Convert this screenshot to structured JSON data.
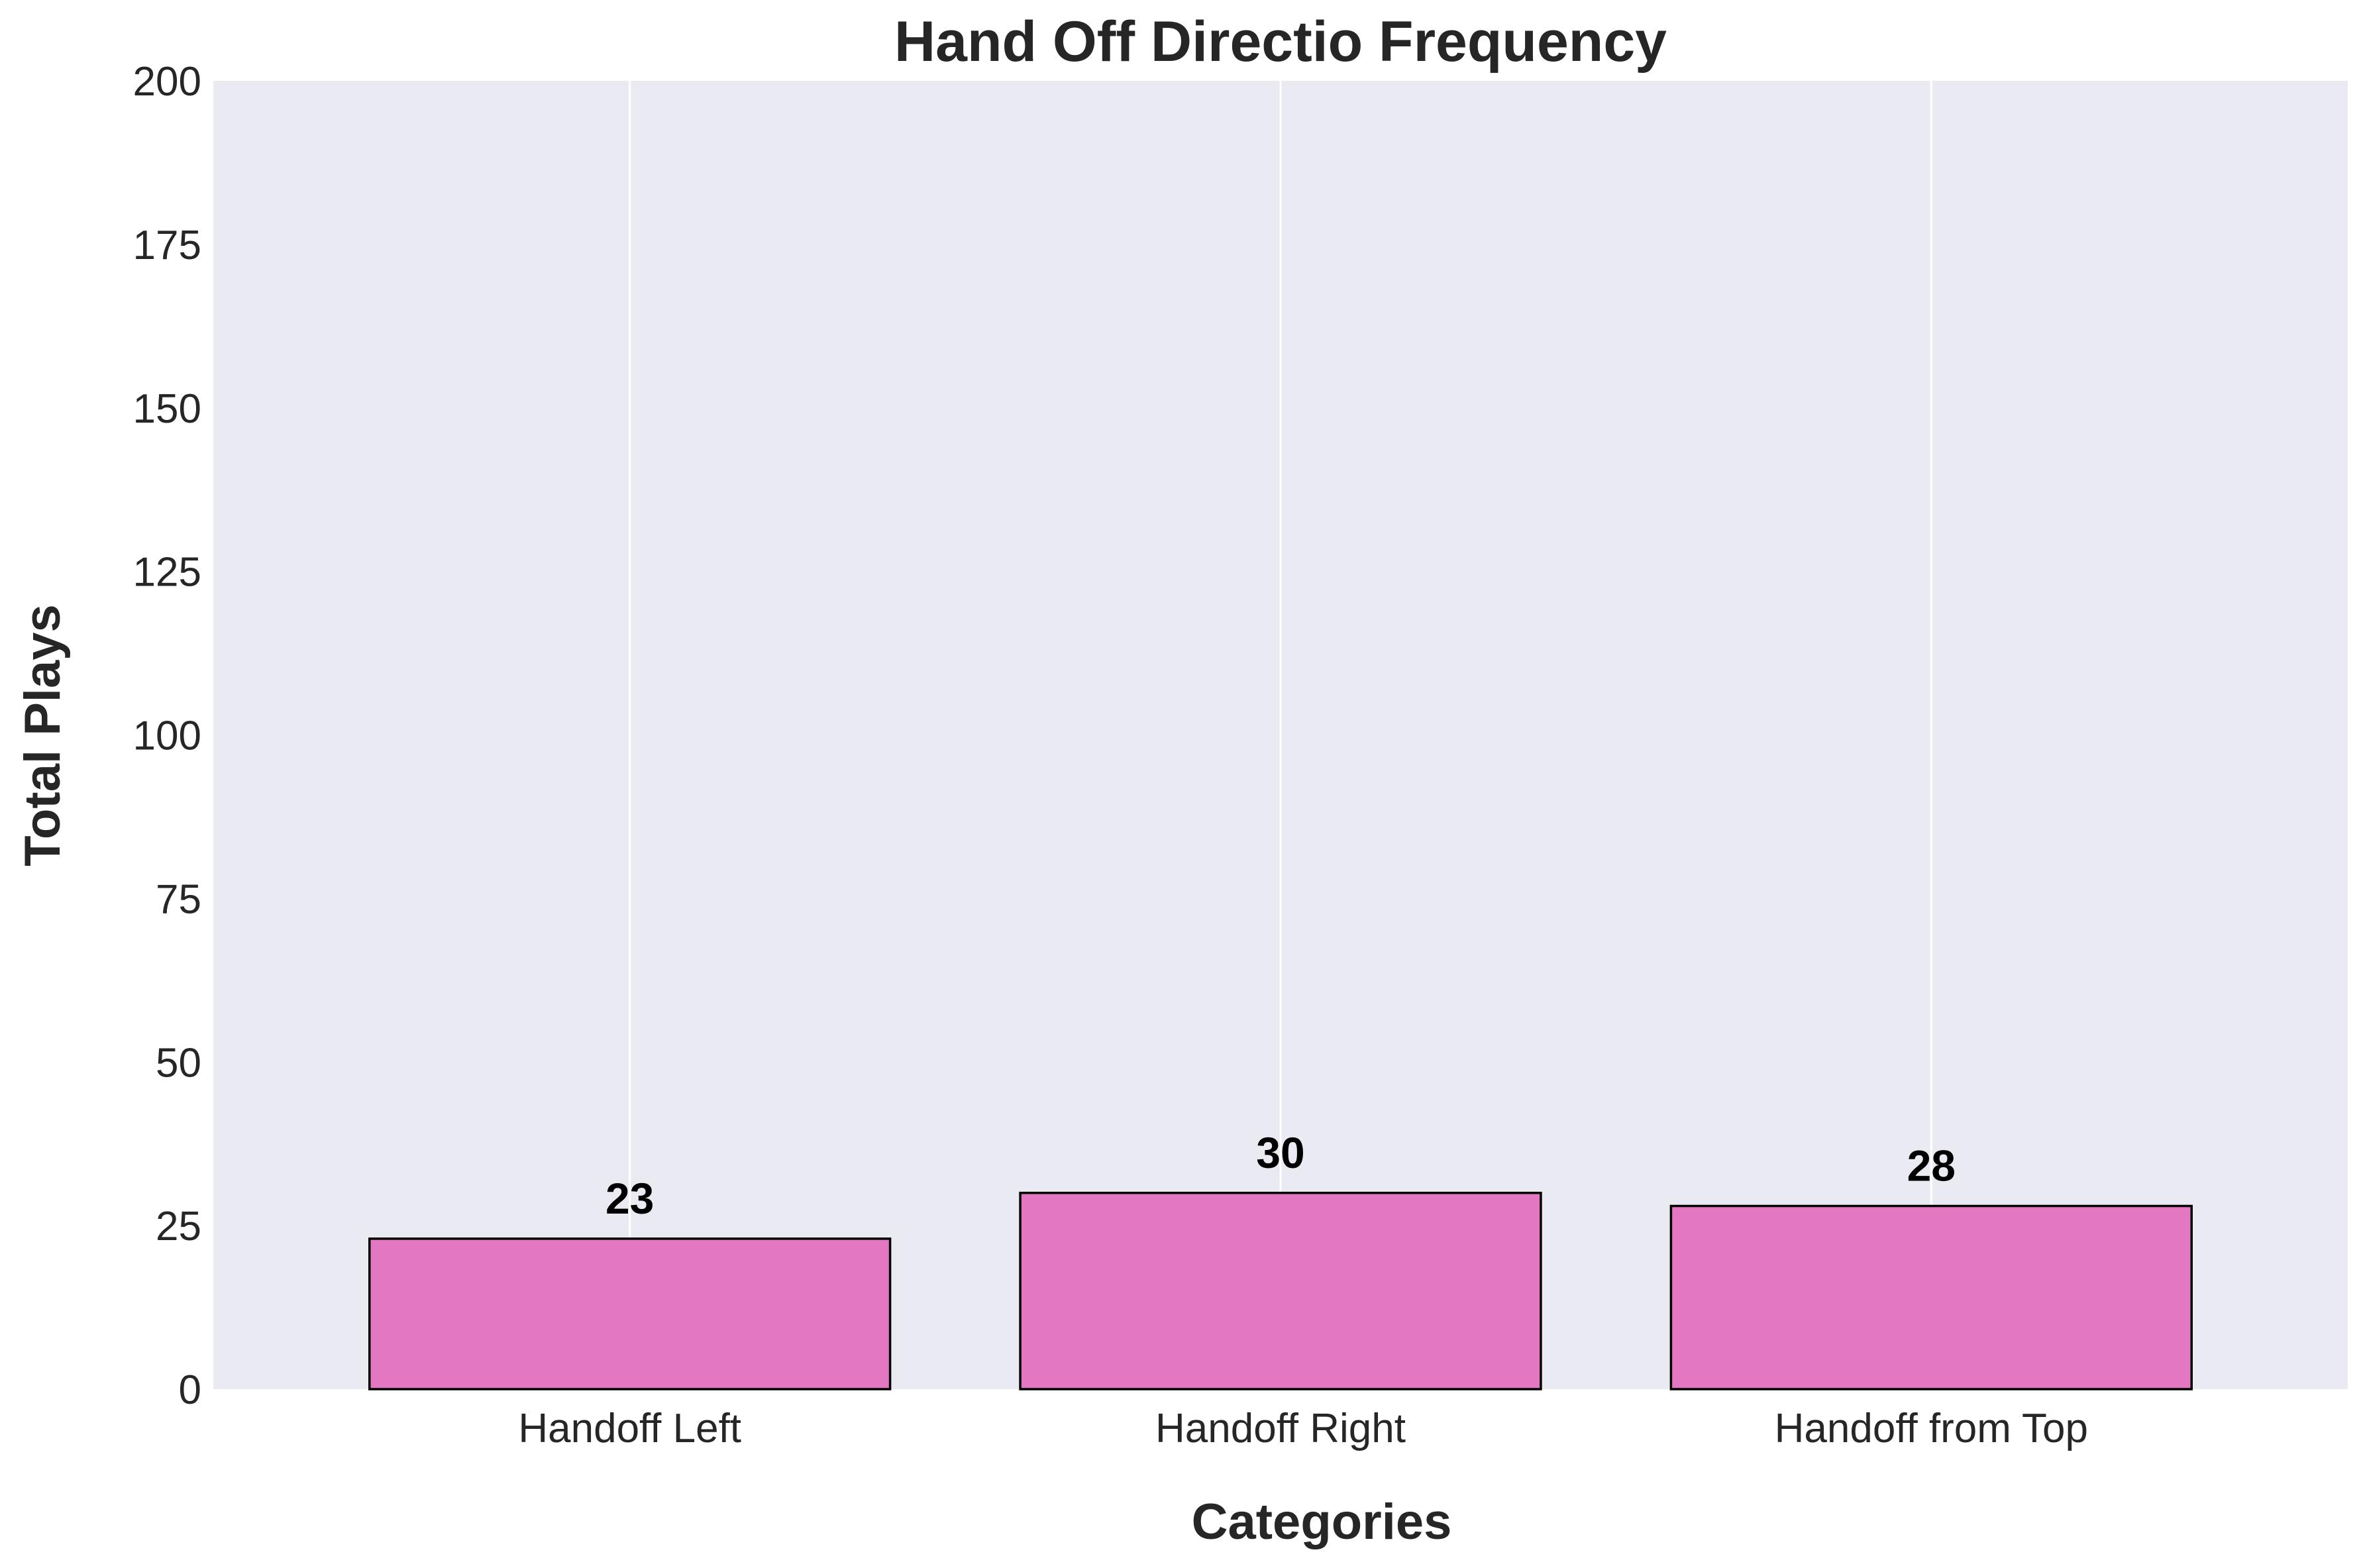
{
  "chart_data": {
    "type": "bar",
    "title": "Hand Off Directio Frequency",
    "xlabel": "Categories",
    "ylabel": "Total Plays",
    "categories": [
      "Handoff Left",
      "Handoff Right",
      "Handoff from Top"
    ],
    "values": [
      23,
      30,
      28
    ],
    "value_labels": [
      "23",
      "30",
      "28"
    ],
    "ylim": [
      0,
      200
    ],
    "yticks": [
      0,
      25,
      50,
      75,
      100,
      125,
      150,
      175,
      200
    ],
    "ytick_labels": [
      "0",
      "25",
      "50",
      "75",
      "100",
      "125",
      "150",
      "175",
      "200"
    ],
    "grid": "vertical",
    "legend": "none",
    "colors": {
      "bar": "#e377c2",
      "bar_edge": "#000000",
      "plot_background": "#eaeaf2",
      "grid": "#ffffff"
    }
  }
}
